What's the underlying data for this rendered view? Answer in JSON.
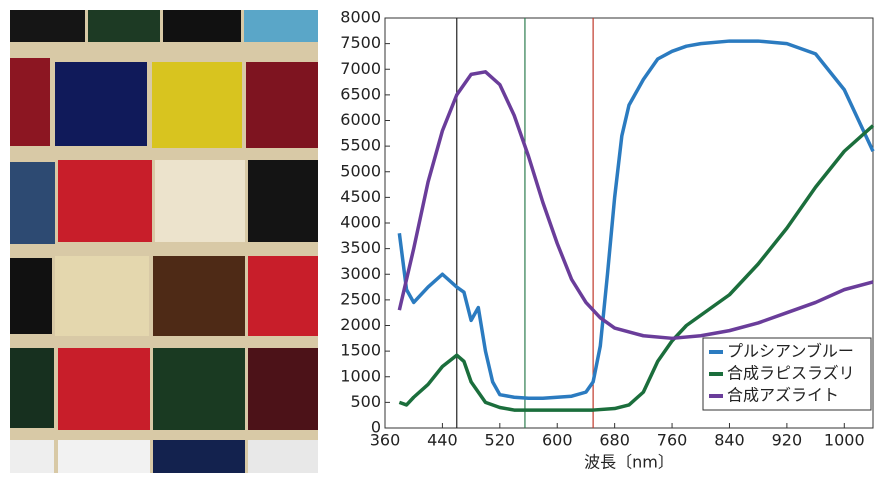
{
  "chart_data": {
    "type": "line",
    "xlabel": "波長〔nm〕",
    "xlim": [
      360,
      1040
    ],
    "xticks": [
      360,
      440,
      520,
      600,
      680,
      760,
      840,
      920,
      1000
    ],
    "ylim": [
      0,
      8000
    ],
    "yticks": [
      0,
      500,
      1000,
      1500,
      2000,
      2500,
      3000,
      3500,
      4000,
      4500,
      5000,
      5500,
      6000,
      6500,
      7000,
      7500,
      8000
    ],
    "legend": "lower right",
    "reference_lines": [
      {
        "x": 460,
        "color": "#222222"
      },
      {
        "x": 555,
        "color": "#2e7d4f"
      },
      {
        "x": 650,
        "color": "#c0392b"
      }
    ],
    "series": [
      {
        "name": "プルシアンブルー",
        "color": "#2b7bc0",
        "x": [
          380,
          390,
          400,
          420,
          440,
          460,
          470,
          480,
          490,
          500,
          510,
          520,
          540,
          560,
          580,
          600,
          620,
          640,
          650,
          660,
          670,
          680,
          690,
          700,
          720,
          740,
          760,
          780,
          800,
          840,
          880,
          920,
          960,
          1000,
          1020,
          1040
        ],
        "values": [
          3800,
          2700,
          2450,
          2750,
          3000,
          2750,
          2650,
          2100,
          2350,
          1500,
          900,
          650,
          600,
          580,
          580,
          600,
          620,
          700,
          900,
          1600,
          3000,
          4500,
          5700,
          6300,
          6800,
          7200,
          7350,
          7450,
          7500,
          7550,
          7550,
          7500,
          7300,
          6600,
          6000,
          5400
        ]
      },
      {
        "name": "合成ラピスラズリ",
        "color": "#1b6e3c",
        "x": [
          380,
          390,
          400,
          420,
          440,
          460,
          470,
          480,
          500,
          520,
          540,
          600,
          650,
          680,
          700,
          720,
          740,
          760,
          780,
          800,
          840,
          880,
          920,
          960,
          1000,
          1040
        ],
        "values": [
          500,
          450,
          600,
          850,
          1200,
          1420,
          1300,
          900,
          500,
          400,
          350,
          350,
          350,
          380,
          450,
          700,
          1300,
          1700,
          2000,
          2200,
          2600,
          3200,
          3900,
          4700,
          5400,
          5900
        ]
      },
      {
        "name": "合成アズライト",
        "color": "#6a3d9a",
        "x": [
          380,
          400,
          420,
          440,
          460,
          480,
          500,
          520,
          540,
          560,
          580,
          600,
          620,
          640,
          660,
          680,
          720,
          760,
          800,
          840,
          880,
          920,
          960,
          1000,
          1040
        ],
        "values": [
          2300,
          3500,
          4800,
          5800,
          6500,
          6900,
          6950,
          6700,
          6100,
          5300,
          4400,
          3600,
          2900,
          2450,
          2150,
          1950,
          1800,
          1750,
          1800,
          1900,
          2050,
          2250,
          2450,
          2700,
          2850
        ]
      }
    ]
  }
}
